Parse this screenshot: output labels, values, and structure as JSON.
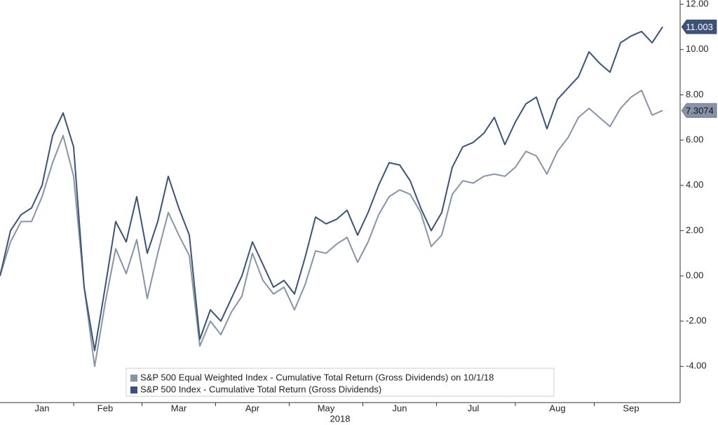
{
  "chart_data": {
    "type": "line",
    "xlabel": "2018",
    "categories": [
      null,
      null,
      null,
      null,
      "Jan",
      null,
      null,
      null,
      null,
      null,
      "Feb",
      null,
      null,
      null,
      null,
      null,
      null,
      "Mar",
      null,
      null,
      null,
      null,
      null,
      null,
      "Apr",
      null,
      null,
      null,
      null,
      null,
      null,
      "May",
      null,
      null,
      null,
      null,
      null,
      null,
      "Jun",
      null,
      null,
      null,
      null,
      null,
      null,
      "Jul",
      null,
      null,
      null,
      null,
      null,
      null,
      null,
      "Aug",
      null,
      null,
      null,
      null,
      null,
      null,
      "Sep",
      null,
      null,
      null
    ],
    "series": [
      {
        "name": "S&P 500 Equal Weighted Index - Cumulative Total Return (Gross Dividends) on 10/1/18",
        "color": "#8693a8",
        "values": [
          0.0,
          1.5,
          2.4,
          2.4,
          3.5,
          5.0,
          6.2,
          4.4,
          -0.5,
          -4.0,
          -1.2,
          1.2,
          0.1,
          1.6,
          -1.0,
          1.0,
          2.8,
          1.8,
          0.9,
          -3.1,
          -2.0,
          -2.6,
          -1.6,
          -0.9,
          1.0,
          -0.2,
          -0.8,
          -0.5,
          -1.5,
          -0.4,
          1.1,
          1.0,
          1.4,
          1.7,
          0.6,
          1.5,
          2.7,
          3.5,
          3.8,
          3.6,
          2.8,
          1.3,
          1.8,
          3.6,
          4.2,
          4.1,
          4.4,
          4.5,
          4.4,
          4.8,
          5.5,
          5.3,
          4.5,
          5.5,
          6.1,
          7.0,
          7.4,
          7.0,
          6.6,
          7.4,
          7.9,
          8.2,
          7.1,
          7.3074
        ]
      },
      {
        "name": "S&P 500 Index - Cumulative Total Return (Gross Dividends)",
        "color": "#3b5378",
        "values": [
          0.0,
          2.0,
          2.7,
          3.0,
          4.0,
          6.2,
          7.2,
          5.7,
          -0.5,
          -3.3,
          -0.5,
          2.4,
          1.5,
          3.5,
          1.0,
          2.4,
          4.4,
          3.0,
          1.8,
          -2.8,
          -1.5,
          -2.0,
          -1.0,
          0.0,
          1.5,
          0.5,
          -0.5,
          -0.2,
          -0.8,
          0.8,
          2.6,
          2.3,
          2.5,
          2.9,
          1.8,
          2.8,
          4.0,
          5.0,
          4.9,
          4.2,
          3.0,
          2.0,
          2.8,
          4.8,
          5.7,
          5.9,
          6.3,
          7.0,
          5.8,
          6.8,
          7.6,
          7.9,
          6.5,
          7.8,
          8.3,
          8.8,
          9.9,
          9.4,
          9.0,
          10.3,
          10.6,
          10.8,
          10.3,
          11.003
        ]
      }
    ],
    "ylim": [
      -5.6,
      12.19
    ],
    "yticks": [
      {
        "value": -4,
        "label": "-4.00"
      },
      {
        "value": -2,
        "label": "-2.00"
      },
      {
        "value": 0,
        "label": "0.00"
      },
      {
        "value": 2,
        "label": "2.00"
      },
      {
        "value": 4,
        "label": "4.00"
      },
      {
        "value": 6,
        "label": "6.00"
      },
      {
        "value": 8,
        "label": "8.00"
      },
      {
        "value": 10,
        "label": "10.00"
      },
      {
        "value": 12,
        "label": "12.00"
      }
    ],
    "grid": false,
    "legend": "lower center"
  }
}
